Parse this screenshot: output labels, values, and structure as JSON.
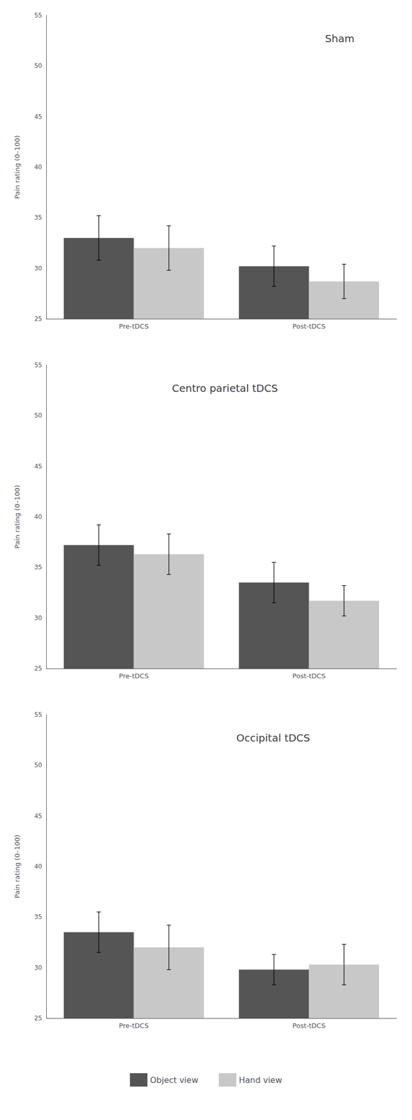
{
  "chart_data": [
    {
      "type": "bar",
      "title": "Sham",
      "categories": [
        "Pre-tDCS",
        "Post-tDCS"
      ],
      "series": [
        {
          "name": "Object view",
          "color": "#555555",
          "values": [
            33.0,
            30.2
          ],
          "errors": [
            2.2,
            2.0
          ]
        },
        {
          "name": "Hand view",
          "color": "#c8c8c8",
          "values": [
            32.0,
            28.7
          ],
          "errors": [
            2.2,
            1.7
          ]
        }
      ],
      "ylabel": "Pain rating (0–100)",
      "ylim": [
        25,
        55
      ],
      "yticks": [
        25,
        30,
        35,
        40,
        45,
        50,
        55
      ]
    },
    {
      "type": "bar",
      "title": "Centro parietal tDCS",
      "categories": [
        "Pre-tDCS",
        "Post-tDCS"
      ],
      "series": [
        {
          "name": "Object view",
          "color": "#555555",
          "values": [
            37.2,
            33.5
          ],
          "errors": [
            2.0,
            2.0
          ]
        },
        {
          "name": "Hand view",
          "color": "#c8c8c8",
          "values": [
            36.3,
            31.7
          ],
          "errors": [
            2.0,
            1.5
          ]
        }
      ],
      "ylabel": "Pain rating (0–100)",
      "ylim": [
        25,
        55
      ],
      "yticks": [
        25,
        30,
        35,
        40,
        45,
        50,
        55
      ]
    },
    {
      "type": "bar",
      "title": "Occipital tDCS",
      "categories": [
        "Pre-tDCS",
        "Post-tDCS"
      ],
      "series": [
        {
          "name": "Object view",
          "color": "#555555",
          "values": [
            33.5,
            29.8
          ],
          "errors": [
            2.0,
            1.5
          ]
        },
        {
          "name": "Hand view",
          "color": "#c8c8c8",
          "values": [
            32.0,
            30.3
          ],
          "errors": [
            2.2,
            2.0
          ]
        }
      ],
      "ylabel": "Pain rating (0–100)",
      "ylim": [
        25,
        55
      ],
      "yticks": [
        25,
        30,
        35,
        40,
        45,
        50,
        55
      ],
      "legend": "bottom"
    }
  ]
}
